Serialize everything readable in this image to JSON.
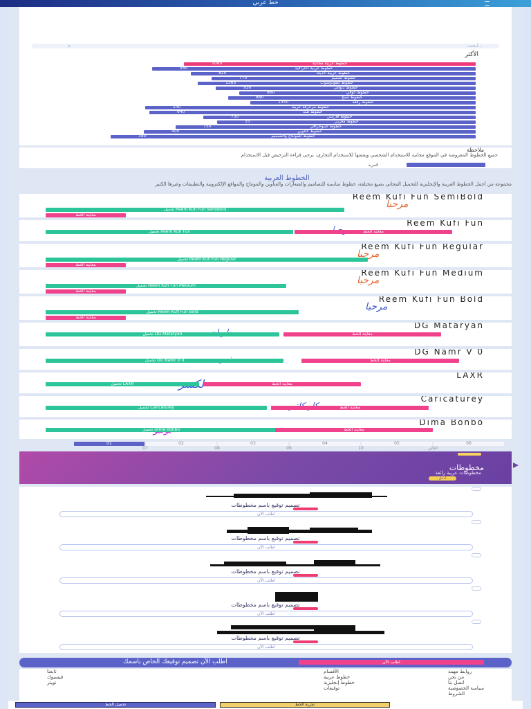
{
  "header": {
    "title": "خط عربي"
  },
  "search": {
    "placeholder": "ابحث..."
  },
  "popular": {
    "heading": "الأكثر",
    "bars": [
      {
        "label": "خطوط عربية مجانية",
        "count": "1080",
        "color": "#ee3b7c"
      },
      {
        "label": "خطوط عربية احترافية",
        "count": "950",
        "color": "#5b63c9"
      },
      {
        "label": "خطوط عربية حديثة",
        "count": "820",
        "color": "#5b63c9"
      },
      {
        "label": "خطوط تصميم",
        "count": "770",
        "color": "#5b63c9"
      },
      {
        "label": "خطوط للفوتوشوب",
        "count": "1365",
        "color": "#5b63c9"
      },
      {
        "label": "خطوط ديواني",
        "count": "930",
        "color": "#5b63c9"
      },
      {
        "label": "خطوط كوفي",
        "count": "860",
        "color": "#5b63c9"
      },
      {
        "label": "خطوط نسخ",
        "count": "880",
        "color": "#5b63c9"
      },
      {
        "label": "خطوط رقعة",
        "count": "1350",
        "color": "#5b63c9"
      },
      {
        "label": "خطوط مزخرفة عربية",
        "count": "140",
        "color": "#5b63c9"
      },
      {
        "label": "خطوط ثلث",
        "count": "640",
        "color": "#5b63c9"
      },
      {
        "label": "خطوط فارسي",
        "count": "730",
        "color": "#5b63c9"
      },
      {
        "label": "خطوط مغربي",
        "count": "55",
        "color": "#5b63c9"
      },
      {
        "label": "خطوط تايبوجرافي",
        "count": "750",
        "color": "#5b63c9"
      },
      {
        "label": "خطوط عناوين",
        "count": "400",
        "color": "#5b63c9"
      },
      {
        "label": "خطوط للمونتاج والتصميم",
        "count": "380",
        "color": "#5b63c9"
      }
    ]
  },
  "notice": {
    "heading": "ملاحظة",
    "text": "جميع الخطوط المعروضة في الموقع مجانية للاستخدام الشخصي وبعضها للاستخدام التجاري، يرجى قراءة الترخيص قبل الاستخدام",
    "more_label": "المزيد"
  },
  "intro": {
    "heading": "الخطوط العربية",
    "text": "مجموعة من أجمل الخطوط العربية والإنجليزية للتحميل المجاني بصيغ مختلفة، خطوط مناسبة للتصاميم والشعارات والعناوين والمونتاج والمواقع الإلكترونية والتطبيقات وغيرها الكثير"
  },
  "fonts": [
    {
      "name": "Reem Kufi Fun SemiBold",
      "sample": "مرحبا",
      "sample_color": "#e6662e",
      "download": "تحميل Reem Kufi Fun SemiBold",
      "preview": "معاينة الخط"
    },
    {
      "name": "Reem Kufi Fun",
      "sample": "مرحبا",
      "sample_color": "#5a70c8",
      "download": "تحميل Reem Kufi Fun",
      "preview": "معاينة الخط"
    },
    {
      "name": "Reem Kufi Fun Regular",
      "sample": "مرحبا",
      "sample_color": "#e6662e",
      "download": "تحميل Reem Kufi Fun Regular",
      "preview": "معاينة الخط"
    },
    {
      "name": "Reem Kufi Fun Medium",
      "sample": "مرحبا",
      "sample_color": "#e6662e",
      "download": "تحميل Reem Kufi Fun Medium",
      "preview": "معاينة الخط"
    },
    {
      "name": "Reem Kufi Fun Bold",
      "sample": "مرحبا",
      "sample_color": "#3b55c8",
      "download": "تحميل Reem Kufi Fun Bold",
      "preview": "معاينة الخط"
    },
    {
      "name": "DG Mataryan",
      "sample": "مطريان",
      "sample_color": "#3b55c8",
      "download": "تحميل DG Mataryan",
      "preview": "معاينة الخط"
    },
    {
      "name": "DG Namr V 0",
      "sample": "نمر",
      "sample_color": "#3b55c8",
      "download": "تحميل DG Namr V 0",
      "preview": "معاينة الخط"
    },
    {
      "name": "LAXR",
      "sample": "لكسر",
      "sample_color": "#2a52d8",
      "download": "تحميل LAXR",
      "preview": "معاينة الخط"
    },
    {
      "name": "Caricaturey",
      "sample": "كاريكاتير",
      "sample_color": "#3b55c8",
      "download": "تحميل Caricaturey",
      "preview": "معاينة الخط"
    },
    {
      "name": "Dima Bonbo",
      "sample": "بونبو",
      "sample_color": "#c23bd8",
      "download": "تحميل Dima Bonbo",
      "preview": "معاينة الخط"
    }
  ],
  "pagination": {
    "top": [
      "01",
      "02",
      "03",
      "04",
      "05",
      "06"
    ],
    "bottom": [
      "07",
      "08",
      "09",
      "10",
      "التالي"
    ],
    "active": "01"
  },
  "promo": {
    "title": "مخطوطات",
    "subtitle": "مخطوطات عربية رائعة",
    "button": "ادخل"
  },
  "signatures": [
    {
      "label": "تصميم توقيع باسم مخطوطات",
      "cta": "اطلب الآن"
    },
    {
      "label": "تصميم توقيع باسم مخطوطات",
      "cta": "اطلب الآن"
    },
    {
      "label": "تصميم توقيع باسم مخطوطات",
      "cta": "اطلب الآن"
    },
    {
      "label": "تصميم توقيع باسم مخطوطات",
      "cta": "اطلب الآن"
    },
    {
      "label": "تصميم توقيع باسم مخطوطات",
      "cta": "اطلب الآن"
    }
  ],
  "cta": {
    "text": "اطلب الآن تصميم توقيعك الخاص باسمك",
    "button": "اطلب الآن"
  },
  "footer": {
    "col_right": [
      "روابط مهمة",
      "من نحن",
      "اتصل بنا",
      "سياسة الخصوصية",
      "الشروط"
    ],
    "col_mid": [
      "الأقسام",
      "خطوط عربية",
      "خطوط إنجليزية",
      "توقيعات"
    ],
    "col_left": [
      "تابعنا",
      "فيسبوك",
      "تويتر"
    ]
  },
  "bottom_bar": {
    "left": "تحميل الخط",
    "right": "تجربة الخط"
  }
}
